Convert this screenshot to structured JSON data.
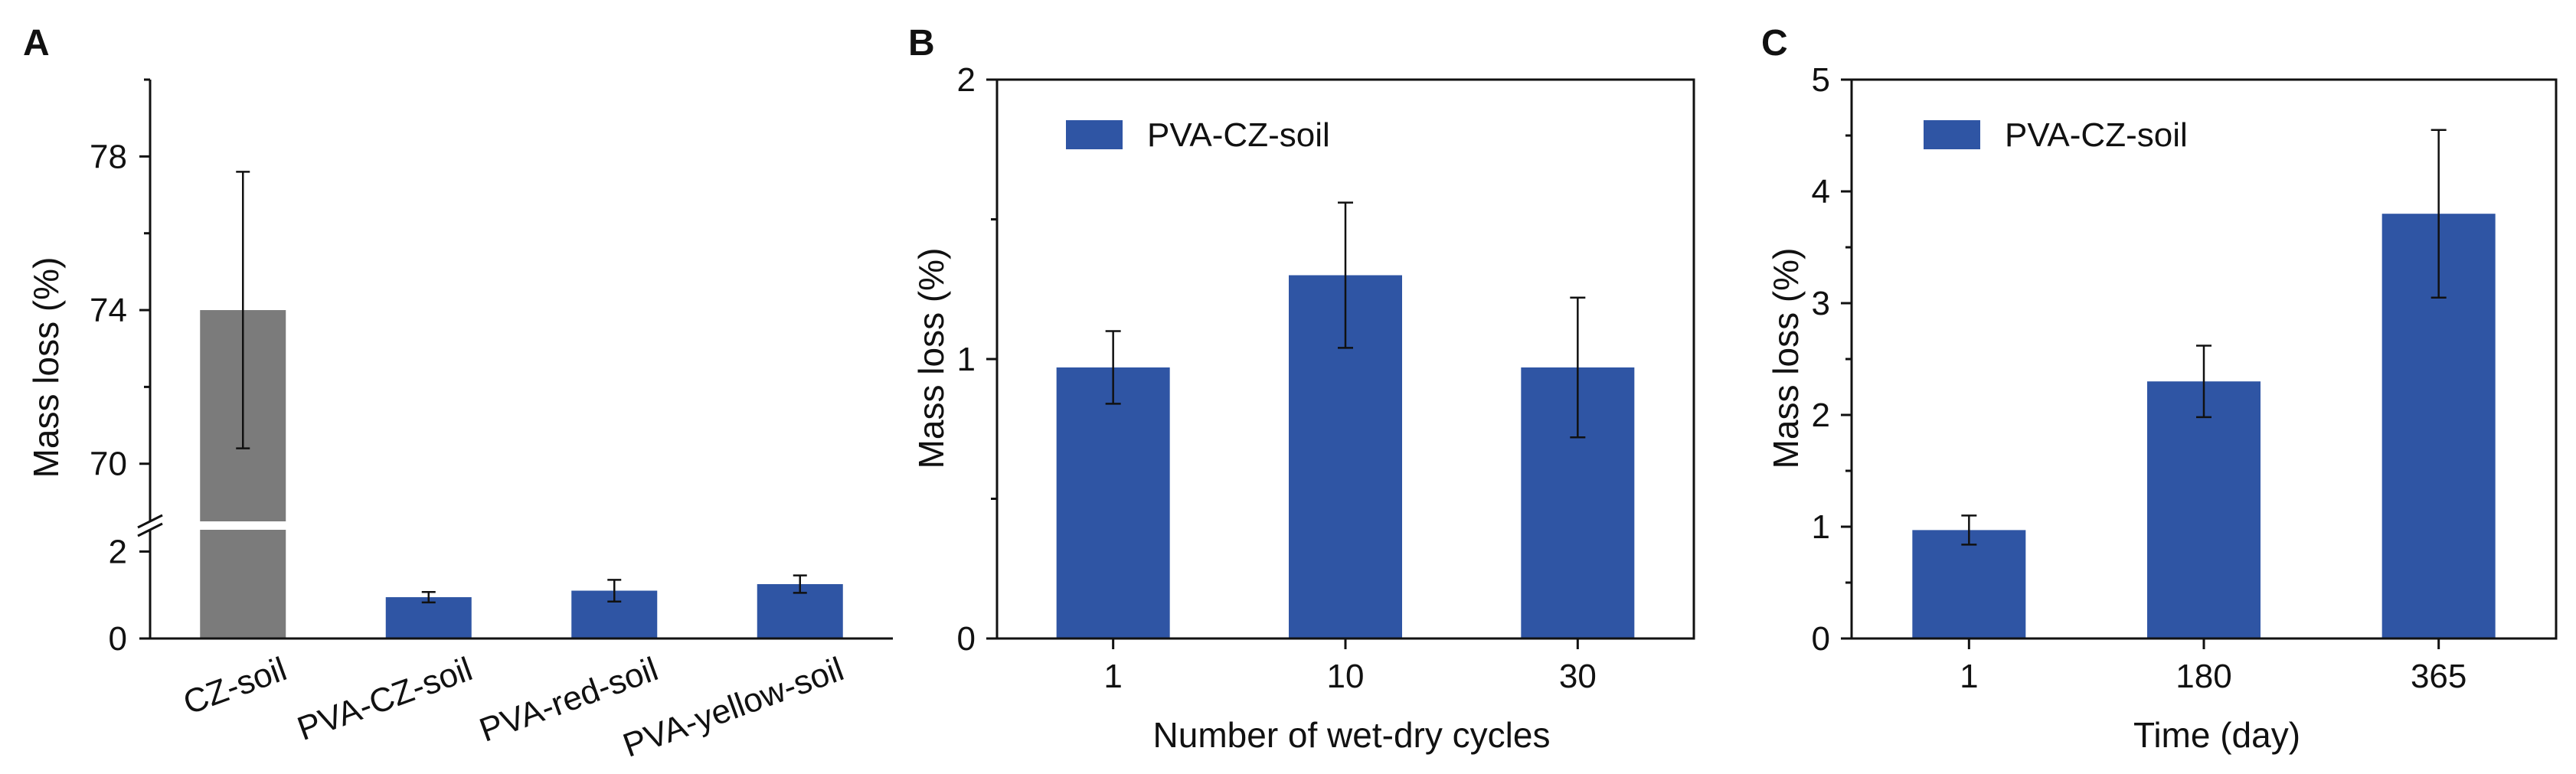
{
  "chart_data": [
    {
      "panel": "A",
      "type": "bar",
      "ylabel": "Mass loss (%)",
      "xlabel": "",
      "axis_break": true,
      "lower_segment": {
        "ylim": [
          0,
          2.5
        ],
        "ticks": [
          0,
          2
        ]
      },
      "upper_segment": {
        "ylim": [
          68.5,
          80
        ],
        "ticks": [
          70,
          74,
          78
        ]
      },
      "categories": [
        "CZ-soil",
        "PVA-CZ-soil",
        "PVA-red-soil",
        "PVA-yellow-soil"
      ],
      "values": [
        74.0,
        0.95,
        1.1,
        1.25
      ],
      "errors": [
        3.6,
        0.12,
        0.25,
        0.2
      ],
      "colors": [
        "#7b7b7b",
        "#2f55a4",
        "#2f55a4",
        "#2f55a4"
      ]
    },
    {
      "panel": "B",
      "type": "bar",
      "ylabel": "Mass loss (%)",
      "xlabel": "Number of wet-dry cycles",
      "ylim": [
        0,
        2
      ],
      "yticks": [
        0,
        1,
        2
      ],
      "categories": [
        "1",
        "10",
        "30"
      ],
      "legend": "PVA-CZ-soil",
      "legend_position": "top-left",
      "values": [
        0.97,
        1.3,
        0.97
      ],
      "errors": [
        0.13,
        0.26,
        0.25
      ],
      "color": "#2f55a4"
    },
    {
      "panel": "C",
      "type": "bar",
      "ylabel": "Mass loss (%)",
      "xlabel": "Time (day)",
      "ylim": [
        0,
        5
      ],
      "yticks": [
        0,
        1,
        2,
        3,
        4,
        5
      ],
      "categories": [
        "1",
        "180",
        "365"
      ],
      "legend": "PVA-CZ-soil",
      "legend_position": "top-left",
      "values": [
        0.97,
        2.3,
        3.8
      ],
      "errors": [
        0.13,
        0.32,
        0.75
      ],
      "color": "#2f55a4"
    }
  ]
}
